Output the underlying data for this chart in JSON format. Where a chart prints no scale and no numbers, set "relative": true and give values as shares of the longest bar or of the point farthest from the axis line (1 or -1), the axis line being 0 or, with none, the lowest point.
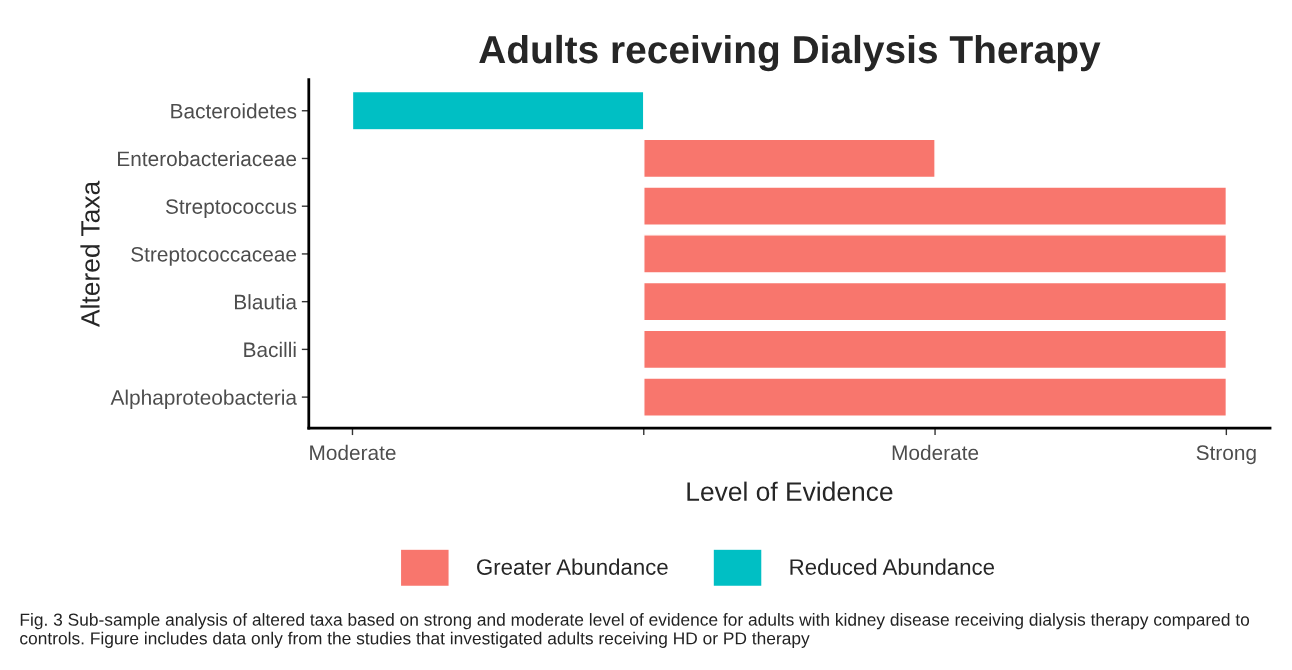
{
  "chart_data": {
    "type": "bar",
    "orientation": "horizontal",
    "title": "Adults receiving Dialysis Therapy",
    "xlabel": "Level of Evidence",
    "ylabel": "Altered Taxa",
    "categories": [
      "Bacteroidetes",
      "Enterobacteriaceae",
      "Streptococcus",
      "Streptococcaceae",
      "Blautia",
      "Bacilli",
      "Alphaproteobacteria"
    ],
    "series": [
      {
        "name": "Greater Abundance",
        "color": "#f8766d",
        "values": [
          null,
          0.5,
          1,
          1,
          1,
          1,
          1
        ]
      },
      {
        "name": "Reduced Abundance",
        "color": "#00bfc4",
        "values": [
          -0.5,
          null,
          null,
          null,
          null,
          null,
          null
        ]
      }
    ],
    "relative": true,
    "grid": false,
    "legend": "bottom",
    "annotations": [
      {
        "text": "Moderate",
        "x": -0.5
      },
      {
        "text": "Moderate",
        "x": 0.5
      },
      {
        "text": "Strong",
        "x": 1
      },
      "Fig. 3 Sub-sample analysis of altered taxa based on strong and moderate level of evidence for adults with kidney disease receiving dialysis therapy compared to controls. Figure includes data only from the studies that investigated adults receiving HD or PD therapy"
    ]
  }
}
